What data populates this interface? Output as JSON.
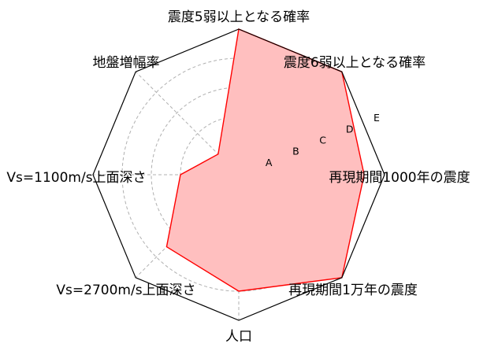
{
  "chart_data": {
    "type": "radar",
    "categories": [
      "震度5弱以上となる確率",
      "震度6弱以上となる確率",
      "再現期間1000年の震度",
      "再現期間1万年の震度",
      "人口",
      "Vs=2700m/s上面深さ",
      "Vs=1100m/s上面深さ",
      "地盤増幅率"
    ],
    "series": [
      {
        "values": [
          5.0,
          5.0,
          4.3,
          5.0,
          4.0,
          3.5,
          2.0,
          1.0
        ]
      }
    ],
    "radial_ticks": [
      "A",
      "B",
      "C",
      "D",
      "E"
    ],
    "rlim": [
      0,
      5
    ],
    "grid": true,
    "colors": {
      "line": "#ff0000",
      "fill": "#ffbfbf",
      "outer_frame": "#000000",
      "grid": "#b0b0b0"
    }
  }
}
